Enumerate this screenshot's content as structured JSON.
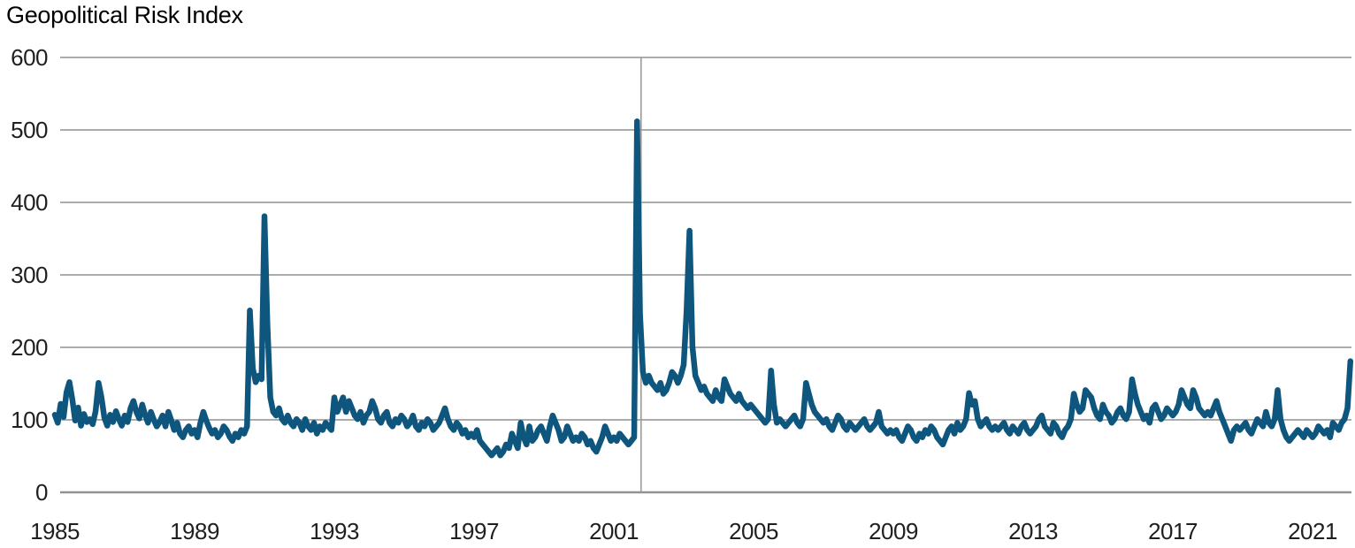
{
  "chart_data": {
    "type": "line",
    "title": "Geopolitical Risk Index",
    "xlabel": "",
    "ylabel": "",
    "legend": "none",
    "grid": "horizontal-only",
    "ylim": [
      0,
      600
    ],
    "y_ticks": [
      0,
      100,
      200,
      300,
      400,
      500,
      600
    ],
    "x_ticks": [
      1985,
      1989,
      1993,
      1997,
      2001,
      2005,
      2009,
      2013,
      2017,
      2021
    ],
    "x_range_years": [
      1985.0,
      2022.1
    ],
    "colors": {
      "line": "#0e567e",
      "grid": "#aaacae",
      "zero_line": "#8f9194",
      "tick_label": "#1f1f1f",
      "title": "#000000",
      "event_line": "#9b9b9b"
    },
    "annotations": [
      {
        "type": "vline",
        "x_year": 2001.78,
        "note": "sep-2001-spike-reference-line"
      }
    ],
    "series": [
      {
        "name": "Geopolitical Risk Index",
        "frequency": "monthly",
        "start": "1985-01",
        "end": "2022-02",
        "values": [
          107,
          96,
          122,
          104,
          138,
          152,
          128,
          99,
          117,
          92,
          108,
          97,
          101,
          94,
          112,
          151,
          131,
          103,
          92,
          107,
          97,
          112,
          101,
          92,
          106,
          97,
          116,
          126,
          111,
          102,
          121,
          107,
          96,
          111,
          100,
          91,
          97,
          106,
          91,
          111,
          99,
          86,
          96,
          81,
          76,
          86,
          91,
          81,
          86,
          76,
          96,
          111,
          99,
          89,
          81,
          86,
          76,
          81,
          91,
          86,
          77,
          71,
          81,
          76,
          86,
          81,
          91,
          251,
          171,
          152,
          161,
          156,
          381,
          232,
          131,
          111,
          106,
          116,
          101,
          96,
          106,
          96,
          91,
          101,
          96,
          86,
          101,
          91,
          86,
          96,
          81,
          91,
          86,
          96,
          91,
          86,
          131,
          111,
          121,
          131,
          111,
          126,
          116,
          106,
          101,
          111,
          96,
          106,
          111,
          126,
          116,
          101,
          96,
          106,
          111,
          96,
          91,
          101,
          96,
          106,
          101,
          91,
          96,
          106,
          91,
          86,
          96,
          91,
          101,
          96,
          86,
          91,
          96,
          106,
          116,
          101,
          91,
          86,
          96,
          91,
          81,
          86,
          76,
          81,
          76,
          86,
          71,
          66,
          61,
          56,
          51,
          56,
          61,
          51,
          56,
          66,
          61,
          81,
          71,
          61,
          96,
          76,
          66,
          91,
          71,
          76,
          86,
          91,
          81,
          71,
          91,
          106,
          96,
          86,
          71,
          76,
          91,
          81,
          71,
          76,
          71,
          81,
          76,
          66,
          71,
          61,
          56,
          66,
          76,
          91,
          81,
          71,
          76,
          71,
          81,
          76,
          71,
          66,
          71,
          76,
          512,
          246,
          166,
          151,
          161,
          151,
          146,
          141,
          151,
          136,
          141,
          151,
          166,
          161,
          151,
          161,
          176,
          251,
          361,
          201,
          161,
          151,
          141,
          146,
          136,
          131,
          126,
          141,
          131,
          126,
          156,
          146,
          136,
          131,
          126,
          136,
          126,
          121,
          116,
          121,
          116,
          111,
          106,
          101,
          96,
          101,
          168,
          121,
          96,
          101,
          96,
          91,
          96,
          101,
          106,
          96,
          91,
          101,
          151,
          136,
          121,
          111,
          106,
          101,
          96,
          101,
          91,
          86,
          96,
          106,
          101,
          91,
          86,
          96,
          91,
          86,
          91,
          96,
          101,
          91,
          86,
          91,
          96,
          111,
          91,
          86,
          81,
          86,
          81,
          86,
          76,
          71,
          81,
          91,
          86,
          76,
          71,
          81,
          76,
          86,
          81,
          91,
          86,
          76,
          71,
          66,
          76,
          86,
          91,
          81,
          96,
          86,
          91,
          101,
          137,
          121,
          126,
          101,
          91,
          96,
          101,
          91,
          86,
          91,
          86,
          91,
          96,
          86,
          81,
          91,
          86,
          81,
          91,
          96,
          86,
          81,
          86,
          91,
          101,
          106,
          91,
          86,
          81,
          96,
          91,
          81,
          76,
          86,
          91,
          101,
          136,
          121,
          111,
          116,
          141,
          136,
          131,
          116,
          106,
          101,
          121,
          111,
          106,
          96,
          101,
          111,
          116,
          106,
          101,
          111,
          156,
          136,
          121,
          111,
          101,
          106,
          96,
          116,
          121,
          111,
          101,
          106,
          116,
          111,
          106,
          111,
          121,
          141,
          131,
          121,
          116,
          141,
          131,
          116,
          111,
          106,
          111,
          106,
          116,
          126,
          111,
          101,
          91,
          81,
          71,
          86,
          91,
          86,
          91,
          96,
          86,
          81,
          91,
          101,
          96,
          91,
          111,
          96,
          91,
          101,
          141,
          101,
          86,
          76,
          71,
          76,
          81,
          86,
          81,
          76,
          86,
          81,
          76,
          81,
          91,
          86,
          81,
          86,
          76,
          96,
          91,
          86,
          96,
          101,
          116,
          181
        ]
      }
    ]
  }
}
